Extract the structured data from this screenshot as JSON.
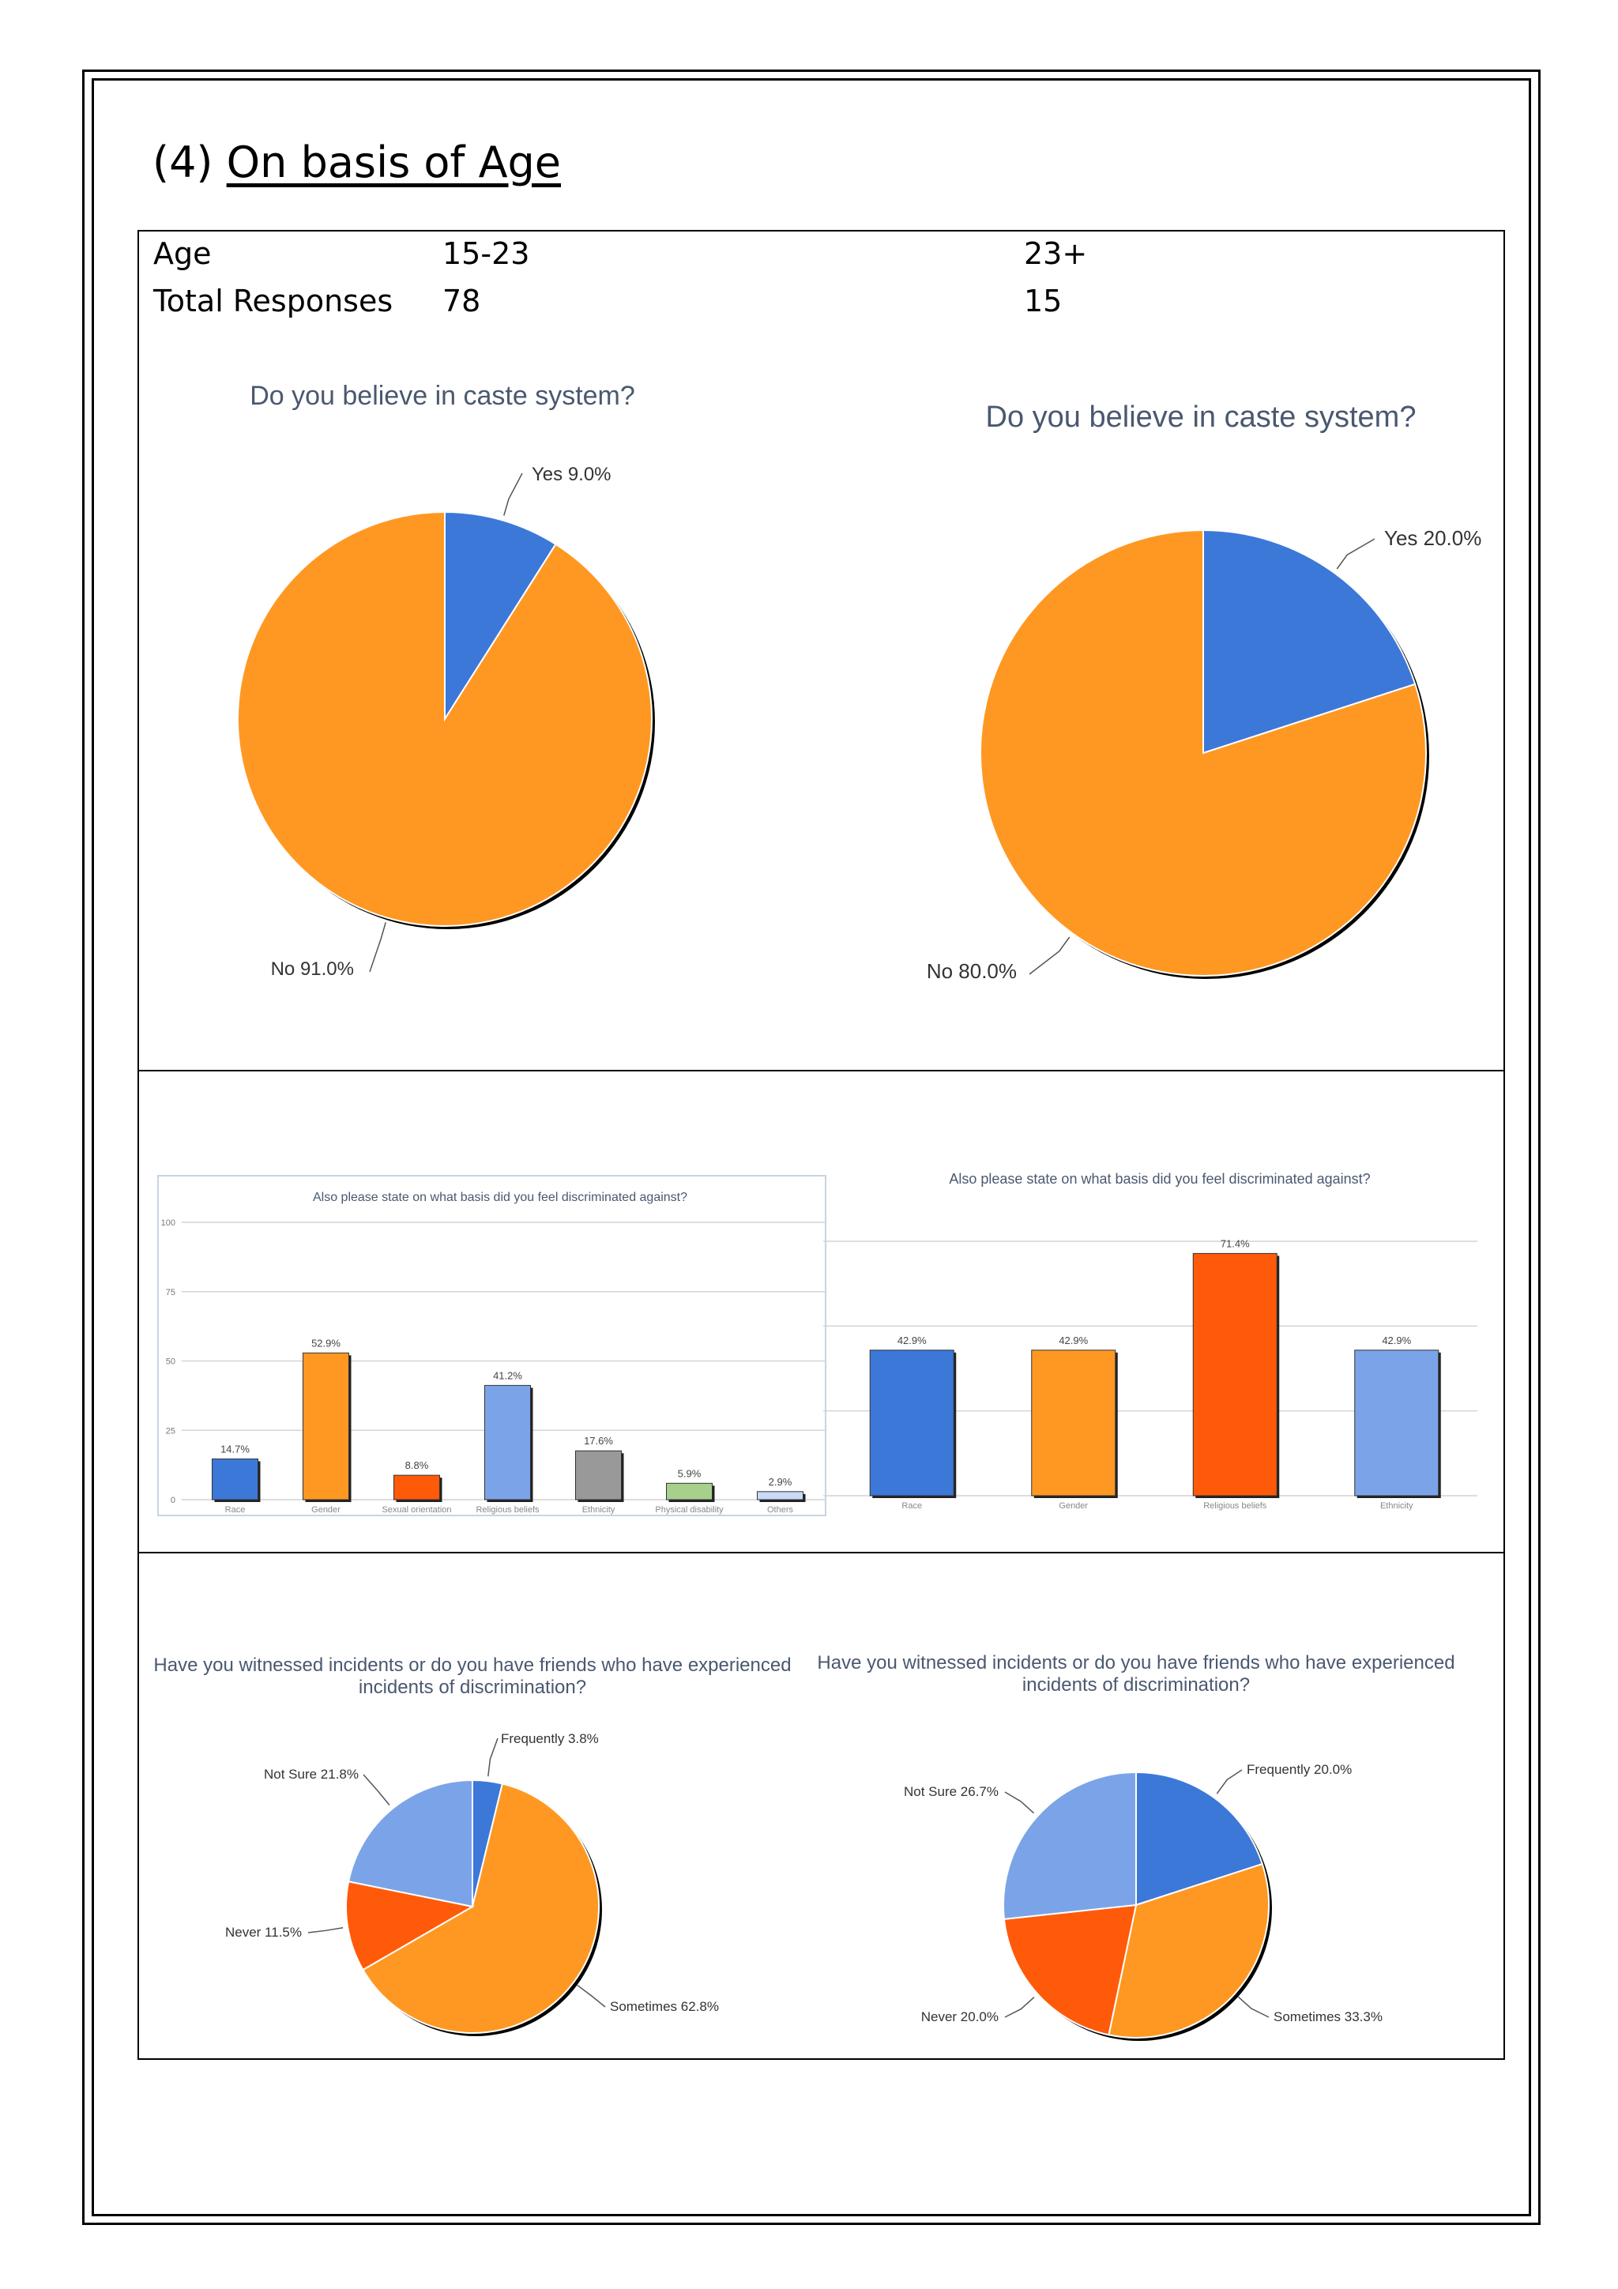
{
  "heading": {
    "number": "(4)",
    "text": "On basis of Age"
  },
  "table": {
    "age_label": "Age",
    "responses_label": "Total Responses",
    "groups": [
      {
        "age": "15-23",
        "responses": "78"
      },
      {
        "age": "23+",
        "responses": "15"
      }
    ]
  },
  "colors": {
    "blue": "#3c78d8",
    "orange": "#ff9822",
    "red": "#ff5a0a",
    "lightblue": "#7ba4e8",
    "gray": "#999999",
    "green": "#a8d08d",
    "paleblue": "#c9daf8"
  },
  "chart_data": [
    {
      "type": "pie",
      "title": "Do you believe in caste system?",
      "labels": [
        "Yes",
        "No"
      ],
      "values": [
        9.0,
        91.0
      ],
      "value_labels": [
        "Yes 9.0%",
        "No 91.0%"
      ]
    },
    {
      "type": "pie",
      "title": "Do you believe in caste system?",
      "labels": [
        "Yes",
        "No"
      ],
      "values": [
        20.0,
        80.0
      ],
      "value_labels": [
        "Yes 20.0%",
        "No 80.0%"
      ]
    },
    {
      "type": "bar",
      "title": "Also please state on what basis did you feel discriminated against?",
      "categories": [
        "Race",
        "Gender",
        "Sexual orientation",
        "Religious beliefs",
        "Ethnicity",
        "Physical disability",
        "Others"
      ],
      "values": [
        14.7,
        52.9,
        8.8,
        41.2,
        17.6,
        5.9,
        2.9
      ],
      "value_labels": [
        "14.7%",
        "52.9%",
        "8.8%",
        "41.2%",
        "17.6%",
        "5.9%",
        "2.9%"
      ],
      "yticks": [
        "0",
        "25",
        "50",
        "75",
        "100"
      ],
      "ylim": [
        0,
        100
      ],
      "grid": true
    },
    {
      "type": "bar",
      "title": "Also please state on what basis did you feel discriminated against?",
      "categories": [
        "Race",
        "Gender",
        "Religious beliefs",
        "Ethnicity"
      ],
      "values": [
        42.9,
        42.9,
        71.4,
        42.9
      ],
      "value_labels": [
        "42.9%",
        "42.9%",
        "71.4%",
        "42.9%"
      ],
      "ylim": [
        0,
        85
      ],
      "grid": true
    },
    {
      "type": "pie",
      "title": "Have you witnessed incidents or do you have friends who have experienced incidents of discrimination?",
      "labels": [
        "Frequently",
        "Sometimes",
        "Never",
        "Not Sure"
      ],
      "values": [
        3.8,
        62.8,
        11.5,
        21.8
      ],
      "value_labels": [
        "Frequently 3.8%",
        "Sometimes 62.8%",
        "Never 11.5%",
        "Not Sure 21.8%"
      ]
    },
    {
      "type": "pie",
      "title": "Have you witnessed incidents or do you have friends who have experienced incidents of discrimination?",
      "labels": [
        "Frequently",
        "Sometimes",
        "Never",
        "Not Sure"
      ],
      "values": [
        20.0,
        33.3,
        20.0,
        26.7
      ],
      "value_labels": [
        "Frequently 20.0%",
        "Sometimes 33.3%",
        "Never 20.0%",
        "Not Sure 26.7%"
      ]
    }
  ]
}
